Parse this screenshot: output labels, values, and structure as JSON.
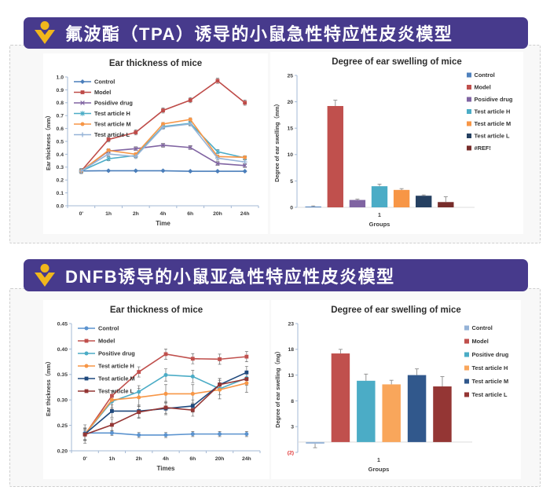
{
  "theme": {
    "banner_purple": "#473a8c",
    "icon_yellow": "#f1b71c",
    "section_bg": "#f8f8f8",
    "dash_border": "#cfcfcf"
  },
  "sections": [
    {
      "title": "氟波酯（TPA）诱导的小鼠急性特应性皮炎模型"
    },
    {
      "title": "DNFB诱导的小鼠亚急性特应性皮炎模型"
    }
  ],
  "chart_data": [
    {
      "type": "line",
      "title": "Ear thickness of mice",
      "xlabel": "Time",
      "ylabel": "Ear thickness（mm）",
      "categories": [
        "0'",
        "1h",
        "2h",
        "4h",
        "6h",
        "20h",
        "24h"
      ],
      "ylim": [
        0,
        1.0
      ],
      "yticks": [
        0,
        0.1,
        0.2,
        0.3,
        0.4,
        0.5,
        0.6,
        0.7,
        0.8,
        0.9,
        1.0
      ],
      "ytick_labels": [
        "0.0",
        "0.1",
        "0.2",
        "0.3",
        "0.4",
        "0.5",
        "0.6",
        "0.7",
        "0.8",
        "0.9",
        "1.0"
      ],
      "grid": "off",
      "legend_position": "inside-top-left",
      "legend_dy": 13.5,
      "series": [
        {
          "name": "Control",
          "color": "#4a7ebb",
          "marker": "diamond",
          "err": 0.006,
          "values": [
            0.27,
            0.272,
            0.272,
            0.272,
            0.268,
            0.268,
            0.268
          ]
        },
        {
          "name": "Model",
          "color": "#be4b48",
          "marker": "square",
          "err": 0.02,
          "values": [
            0.27,
            0.515,
            0.57,
            0.74,
            0.82,
            0.97,
            0.8
          ]
        },
        {
          "name": "Posidive drug",
          "color": "#8064a2",
          "marker": "x",
          "err": 0.015,
          "values": [
            0.27,
            0.425,
            0.443,
            0.47,
            0.452,
            0.328,
            0.312
          ]
        },
        {
          "name": "Test article H",
          "color": "#4bacc6",
          "marker": "star",
          "err": 0.015,
          "values": [
            0.27,
            0.365,
            0.39,
            0.615,
            0.64,
            0.42,
            0.372
          ]
        },
        {
          "name": "Test article M",
          "color": "#f79646",
          "marker": "circle",
          "err": 0.012,
          "values": [
            0.27,
            0.43,
            0.4,
            0.635,
            0.67,
            0.382,
            0.376
          ]
        },
        {
          "name": "Test article L",
          "color": "#95b3d7",
          "marker": "plus",
          "err": 0.015,
          "values": [
            0.27,
            0.402,
            0.382,
            0.61,
            0.635,
            0.37,
            0.34
          ]
        }
      ]
    },
    {
      "type": "bar",
      "title": "Degree of ear swelling of mice",
      "xlabel": "Groups",
      "ylabel": "Degree of ear swelling（mm）",
      "categories": [
        "1"
      ],
      "ylim": [
        0,
        25
      ],
      "yticks": [
        0,
        5,
        10,
        15,
        20,
        25
      ],
      "ytick_labels": [
        "0",
        "5",
        "10",
        "15",
        "20",
        "25"
      ],
      "grid": "off",
      "legend_position": "right",
      "legend_y0": 32,
      "legend_dy": 15.5,
      "series": [
        {
          "name": "Control",
          "color": "#4f81bd",
          "value": 0.15,
          "err": 0.12
        },
        {
          "name": "Model",
          "color": "#c0504d",
          "value": 19.2,
          "err": 1.1
        },
        {
          "name": "Posidive drug",
          "color": "#8064a2",
          "value": 1.4,
          "err": 0.15
        },
        {
          "name": "Test article H",
          "color": "#4bacc6",
          "value": 4.0,
          "err": 0.4
        },
        {
          "name": "Test article M",
          "color": "#f79646",
          "value": 3.3,
          "err": 0.25
        },
        {
          "name": "Test article L",
          "color": "#254061",
          "value": 2.2,
          "err": 0.15
        },
        {
          "name": "#REF!",
          "color": "#772c2a",
          "value": 1.0,
          "err": 1.0
        }
      ]
    },
    {
      "type": "line",
      "title": "Ear thickness of mice",
      "xlabel": "Times",
      "ylabel": "Ear thickness（mm）",
      "categories": [
        "0'",
        "1h",
        "2h",
        "4h",
        "6h",
        "20h",
        "24h"
      ],
      "ylim": [
        0.2,
        0.45
      ],
      "yticks": [
        0.2,
        0.25,
        0.3,
        0.35,
        0.4,
        0.45
      ],
      "ytick_labels": [
        "0.20",
        "0.25",
        "0.30",
        "0.35",
        "0.40",
        "0.45"
      ],
      "grid": "off",
      "legend_position": "inside-top-left",
      "legend_dy": 16,
      "series": [
        {
          "name": "Control",
          "color": "#5b93cf",
          "marker": "circle",
          "err": 0.005,
          "values": [
            0.235,
            0.235,
            0.231,
            0.231,
            0.233,
            0.233,
            0.233
          ]
        },
        {
          "name": "Model",
          "color": "#c0504d",
          "marker": "square",
          "err": 0.01,
          "values": [
            0.232,
            0.308,
            0.355,
            0.39,
            0.381,
            0.38,
            0.385
          ]
        },
        {
          "name": "Positive drug",
          "color": "#4bacc6",
          "marker": "circle",
          "err": 0.012,
          "values": [
            0.233,
            0.297,
            0.316,
            0.349,
            0.346,
            0.322,
            0.343
          ]
        },
        {
          "name": "Test article H",
          "color": "#f79646",
          "marker": "circle",
          "err": 0.018,
          "values": [
            0.233,
            0.3,
            0.305,
            0.312,
            0.312,
            0.32,
            0.333
          ]
        },
        {
          "name": "Test article M",
          "color": "#1f497d",
          "marker": "square",
          "err": 0.012,
          "values": [
            0.233,
            0.278,
            0.278,
            0.283,
            0.288,
            0.33,
            0.354
          ]
        },
        {
          "name": "Test article L",
          "color": "#943634",
          "marker": "square",
          "err": 0.012,
          "values": [
            0.232,
            0.251,
            0.276,
            0.285,
            0.28,
            0.33,
            0.341
          ]
        }
      ]
    },
    {
      "type": "bar",
      "title": "Degree of ear swelling of mice",
      "xlabel": "Groups",
      "ylabel": "Degree of ear swelling（mg）",
      "categories": [
        "1"
      ],
      "ylim": [
        -2,
        23
      ],
      "yticks": [
        -2,
        3,
        8,
        13,
        18,
        23
      ],
      "ytick_labels": [
        "(2)",
        "3",
        "8",
        "13",
        "18",
        "23"
      ],
      "ytick_label_colors": [
        "#e03030",
        null,
        null,
        null,
        null,
        null
      ],
      "grid": "off",
      "legend_position": "right",
      "legend_y0": 38,
      "legend_dy": 17,
      "series": [
        {
          "name": "Control",
          "color": "#95b3d7",
          "value": -0.3,
          "err": 0.8
        },
        {
          "name": "Model",
          "color": "#c0504d",
          "value": 17.2,
          "err": 0.8
        },
        {
          "name": "Positive drug",
          "color": "#4bacc6",
          "value": 11.9,
          "err": 1.3
        },
        {
          "name": "Test article H",
          "color": "#f9a65b",
          "value": 11.2,
          "err": 0.8
        },
        {
          "name": "Test article M",
          "color": "#31588c",
          "value": 13.0,
          "err": 1.2
        },
        {
          "name": "Test article L",
          "color": "#943634",
          "value": 10.8,
          "err": 1.9
        }
      ]
    }
  ]
}
